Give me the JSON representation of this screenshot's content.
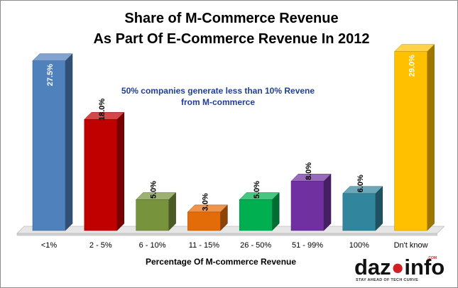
{
  "chart_data": {
    "type": "bar",
    "title_lines": [
      "Share of M-Commerce Revenue",
      "As Part Of E-Commerce Revenue In 2012"
    ],
    "annotation_lines": [
      "50% companies generate less than 10% Revene",
      "from M-commerce"
    ],
    "xlabel": "Percentage Of M-commerce Revenue",
    "ylim": [
      0,
      30
    ],
    "grid": false,
    "legend": "none",
    "categories": [
      "<1%",
      "2 - 5%",
      "6 - 10%",
      "11 - 15%",
      "26 - 50%",
      "51 - 99%",
      "100%",
      "Dn't know"
    ],
    "values": [
      27.5,
      18.0,
      5.0,
      3.0,
      5.0,
      8.0,
      6.0,
      29.0
    ],
    "value_labels": [
      "27.5%",
      "18.0%",
      "5.0%",
      "3.0%",
      "5.0%",
      "8.0%",
      "6.0%",
      "29.0%"
    ],
    "colors": [
      "#4f81bd",
      "#c00000",
      "#77933c",
      "#e36c09",
      "#00b050",
      "#7030a0",
      "#31859c",
      "#ffc000"
    ]
  },
  "watermark": {
    "text_pre": "daz",
    "text_post": "info",
    "com": ".COM",
    "tagline": "STAY AHEAD OF TECH CURVE"
  }
}
